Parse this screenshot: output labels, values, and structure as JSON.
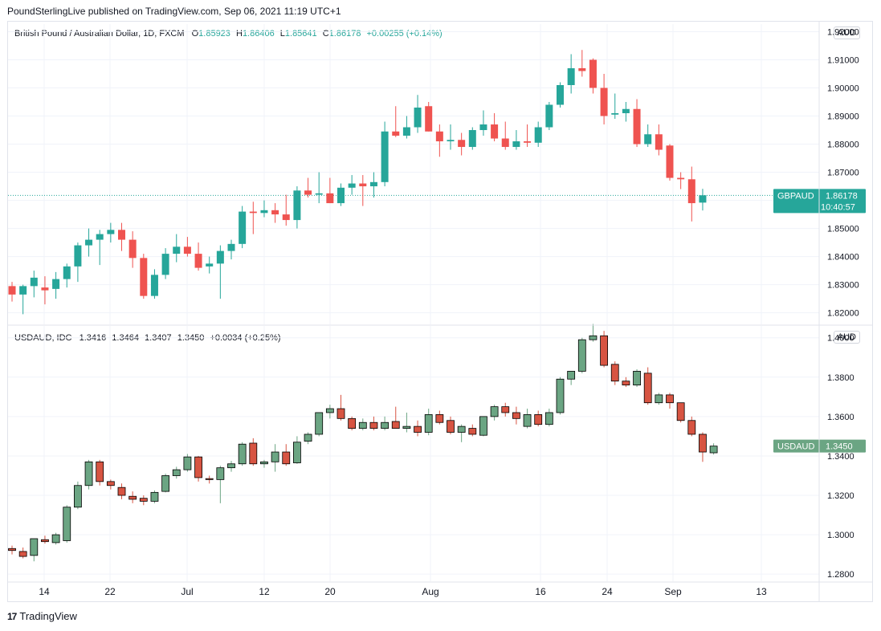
{
  "header": {
    "publisher_line": "PoundSterlingLive published on TradingView.com, Sep 06, 2021 11:19 UTC+1"
  },
  "footer": {
    "brand": "TradingView",
    "logo_glyph": "17"
  },
  "colors": {
    "up": "#26a69a",
    "down": "#ef5350",
    "up2": "#6ba583",
    "down2": "#d75442",
    "grid": "#f0f3fa",
    "axis_text": "#131722"
  },
  "chart_data": [
    {
      "type": "candlestick",
      "title": "British Pound / Australian Dollar, 1D, FXCM",
      "ohlc_text": {
        "o_label": "O",
        "o": "1.85923",
        "h_label": "H",
        "h": "1.86406",
        "l_label": "L",
        "l": "1.85641",
        "c_label": "C",
        "c": "1.86178",
        "change": "+0.00255 (+0.14%)"
      },
      "currency": "AUD",
      "y_ticks": [
        "1.92000",
        "1.91000",
        "1.90000",
        "1.89000",
        "1.88000",
        "1.87000",
        "1.86000",
        "1.85000",
        "1.84000",
        "1.83000",
        "1.82000"
      ],
      "ylim": [
        1.8159,
        1.9227
      ],
      "last_label": "GBPAUD",
      "last_value": "1.86178",
      "countdown": "10:40:57",
      "candles": [
        [
          1.8295,
          1.831,
          1.824,
          1.8265
        ],
        [
          1.8265,
          1.83,
          1.8195,
          1.8295
        ],
        [
          1.8295,
          1.835,
          1.8255,
          1.8325
        ],
        [
          1.829,
          1.833,
          1.823,
          1.828
        ],
        [
          1.8285,
          1.8345,
          1.825,
          1.832
        ],
        [
          1.832,
          1.8375,
          1.829,
          1.8365
        ],
        [
          1.8365,
          1.845,
          1.831,
          1.844
        ],
        [
          1.844,
          1.85,
          1.84,
          1.846
        ],
        [
          1.846,
          1.8495,
          1.837,
          1.848
        ],
        [
          1.848,
          1.852,
          1.845,
          1.8495
        ],
        [
          1.8495,
          1.852,
          1.842,
          1.846
        ],
        [
          1.846,
          1.849,
          1.836,
          1.8395
        ],
        [
          1.8395,
          1.841,
          1.825,
          1.826
        ],
        [
          1.826,
          1.8355,
          1.825,
          1.8335
        ],
        [
          1.8335,
          1.843,
          1.832,
          1.841
        ],
        [
          1.841,
          1.848,
          1.838,
          1.8435
        ],
        [
          1.8435,
          1.847,
          1.84,
          1.841
        ],
        [
          1.841,
          1.845,
          1.835,
          1.836
        ],
        [
          1.8365,
          1.84,
          1.834,
          1.8375
        ],
        [
          1.8375,
          1.844,
          1.825,
          1.842
        ],
        [
          1.842,
          1.846,
          1.839,
          1.8445
        ],
        [
          1.8445,
          1.858,
          1.843,
          1.856
        ],
        [
          1.856,
          1.8595,
          1.848,
          1.8555
        ],
        [
          1.8555,
          1.86,
          1.854,
          1.8565
        ],
        [
          1.8565,
          1.859,
          1.852,
          1.855
        ],
        [
          1.855,
          1.862,
          1.851,
          1.853
        ],
        [
          1.853,
          1.865,
          1.85,
          1.8635
        ],
        [
          1.8635,
          1.868,
          1.861,
          1.862
        ],
        [
          1.862,
          1.87,
          1.859,
          1.8625
        ],
        [
          1.8625,
          1.868,
          1.859,
          1.859
        ],
        [
          1.859,
          1.866,
          1.858,
          1.8645
        ],
        [
          1.8645,
          1.869,
          1.862,
          1.866
        ],
        [
          1.866,
          1.869,
          1.858,
          1.865
        ],
        [
          1.865,
          1.87,
          1.861,
          1.8665
        ],
        [
          1.8665,
          1.888,
          1.865,
          1.8845
        ],
        [
          1.8845,
          1.8935,
          1.8825,
          1.883
        ],
        [
          1.883,
          1.89,
          1.882,
          1.886
        ],
        [
          1.886,
          1.8975,
          1.884,
          1.893
        ],
        [
          1.8935,
          1.895,
          1.8845,
          1.8845
        ],
        [
          1.8845,
          1.887,
          1.8755,
          1.881
        ],
        [
          1.881,
          1.887,
          1.878,
          1.8815
        ],
        [
          1.8815,
          1.884,
          1.876,
          1.879
        ],
        [
          1.879,
          1.886,
          1.878,
          1.885
        ],
        [
          1.885,
          1.892,
          1.883,
          1.887
        ],
        [
          1.887,
          1.891,
          1.881,
          1.882
        ],
        [
          1.882,
          1.888,
          1.878,
          1.879
        ],
        [
          1.879,
          1.885,
          1.878,
          1.881
        ],
        [
          1.881,
          1.887,
          1.879,
          1.8805
        ],
        [
          1.8805,
          1.888,
          1.879,
          1.886
        ],
        [
          1.886,
          1.895,
          1.885,
          1.894
        ],
        [
          1.894,
          1.902,
          1.893,
          1.901
        ],
        [
          1.901,
          1.912,
          1.898,
          1.907
        ],
        [
          1.907,
          1.9135,
          1.904,
          1.906
        ],
        [
          1.91,
          1.9105,
          1.898,
          1.9
        ],
        [
          1.9,
          1.905,
          1.887,
          1.89
        ],
        [
          1.8905,
          1.898,
          1.889,
          1.891
        ],
        [
          1.891,
          1.895,
          1.888,
          1.8925
        ],
        [
          1.8925,
          1.896,
          1.879,
          1.88
        ],
        [
          1.88,
          1.887,
          1.879,
          1.8835
        ],
        [
          1.8835,
          1.887,
          1.876,
          1.878
        ],
        [
          1.8795,
          1.88,
          1.867,
          1.868
        ],
        [
          1.868,
          1.87,
          1.864,
          1.8675
        ],
        [
          1.8675,
          1.872,
          1.8525,
          1.859
        ],
        [
          1.8592,
          1.8641,
          1.8564,
          1.8618
        ]
      ]
    },
    {
      "type": "candlestick",
      "title": "USDAUD, IDC",
      "ohlc_text": {
        "o": "1.3416",
        "h": "1.3464",
        "l": "1.3407",
        "c": "1.3450",
        "change": "+0.0034 (+0.25%)"
      },
      "currency": "AUD",
      "y_ticks": [
        "1.4000",
        "1.3800",
        "1.3600",
        "1.3400",
        "1.3200",
        "1.3000",
        "1.2800"
      ],
      "ylim": [
        1.2764,
        1.406
      ],
      "last_label": "USDAUD",
      "last_value": "1.3450",
      "x_ticks": [
        "14",
        "22",
        "Jul",
        "12",
        "20",
        "Aug",
        "16",
        "24",
        "Sep",
        "13"
      ],
      "candles": [
        [
          1.293,
          1.2945,
          1.29,
          1.292
        ],
        [
          1.2915,
          1.2935,
          1.288,
          1.289
        ],
        [
          1.2895,
          1.2975,
          1.2865,
          1.298
        ],
        [
          1.2975,
          1.2995,
          1.2955,
          1.2965
        ],
        [
          1.296,
          1.301,
          1.295,
          1.3
        ],
        [
          1.297,
          1.315,
          1.296,
          1.314
        ],
        [
          1.314,
          1.327,
          1.313,
          1.325
        ],
        [
          1.325,
          1.338,
          1.323,
          1.337
        ],
        [
          1.337,
          1.338,
          1.325,
          1.327
        ],
        [
          1.327,
          1.328,
          1.323,
          1.325
        ],
        [
          1.324,
          1.326,
          1.318,
          1.32
        ],
        [
          1.3195,
          1.322,
          1.316,
          1.318
        ],
        [
          1.3185,
          1.32,
          1.315,
          1.317
        ],
        [
          1.317,
          1.3225,
          1.316,
          1.3215
        ],
        [
          1.322,
          1.331,
          1.3215,
          1.33
        ],
        [
          1.33,
          1.3345,
          1.3285,
          1.333
        ],
        [
          1.333,
          1.341,
          1.332,
          1.3395
        ],
        [
          1.3395,
          1.34,
          1.327,
          1.329
        ],
        [
          1.3285,
          1.33,
          1.326,
          1.328
        ],
        [
          1.328,
          1.335,
          1.316,
          1.334
        ],
        [
          1.334,
          1.3375,
          1.332,
          1.336
        ],
        [
          1.336,
          1.347,
          1.335,
          1.346
        ],
        [
          1.3465,
          1.349,
          1.335,
          1.336
        ],
        [
          1.336,
          1.338,
          1.334,
          1.337
        ],
        [
          1.337,
          1.346,
          1.332,
          1.342
        ],
        [
          1.342,
          1.346,
          1.335,
          1.336
        ],
        [
          1.3365,
          1.35,
          1.336,
          1.347
        ],
        [
          1.3475,
          1.352,
          1.346,
          1.351
        ],
        [
          1.351,
          1.362,
          1.35,
          1.362
        ],
        [
          1.362,
          1.366,
          1.359,
          1.364
        ],
        [
          1.364,
          1.371,
          1.358,
          1.359
        ],
        [
          1.359,
          1.36,
          1.353,
          1.354
        ],
        [
          1.354,
          1.359,
          1.353,
          1.357
        ],
        [
          1.357,
          1.36,
          1.353,
          1.354
        ],
        [
          1.354,
          1.36,
          1.353,
          1.357
        ],
        [
          1.3575,
          1.365,
          1.354,
          1.354
        ],
        [
          1.354,
          1.362,
          1.352,
          1.355
        ],
        [
          1.355,
          1.358,
          1.35,
          1.352
        ],
        [
          1.352,
          1.364,
          1.3505,
          1.361
        ],
        [
          1.361,
          1.363,
          1.356,
          1.357
        ],
        [
          1.358,
          1.36,
          1.351,
          1.352
        ],
        [
          1.352,
          1.356,
          1.347,
          1.355
        ],
        [
          1.354,
          1.356,
          1.35,
          1.351
        ],
        [
          1.3505,
          1.36,
          1.35,
          1.36
        ],
        [
          1.36,
          1.366,
          1.358,
          1.365
        ],
        [
          1.365,
          1.367,
          1.36,
          1.362
        ],
        [
          1.362,
          1.365,
          1.356,
          1.359
        ],
        [
          1.355,
          1.364,
          1.354,
          1.361
        ],
        [
          1.361,
          1.363,
          1.355,
          1.356
        ],
        [
          1.356,
          1.364,
          1.355,
          1.362
        ],
        [
          1.362,
          1.38,
          1.361,
          1.379
        ],
        [
          1.379,
          1.383,
          1.376,
          1.383
        ],
        [
          1.383,
          1.4,
          1.382,
          1.399
        ],
        [
          1.399,
          1.407,
          1.398,
          1.401
        ],
        [
          1.401,
          1.4035,
          1.385,
          1.386
        ],
        [
          1.3865,
          1.388,
          1.376,
          1.378
        ],
        [
          1.378,
          1.38,
          1.375,
          1.376
        ],
        [
          1.376,
          1.384,
          1.375,
          1.383
        ],
        [
          1.382,
          1.385,
          1.366,
          1.367
        ],
        [
          1.367,
          1.372,
          1.366,
          1.371
        ],
        [
          1.371,
          1.372,
          1.364,
          1.367
        ],
        [
          1.367,
          1.367,
          1.357,
          1.358
        ],
        [
          1.358,
          1.36,
          1.35,
          1.351
        ],
        [
          1.351,
          1.352,
          1.337,
          1.342
        ],
        [
          1.3416,
          1.3464,
          1.3407,
          1.345
        ]
      ]
    }
  ]
}
